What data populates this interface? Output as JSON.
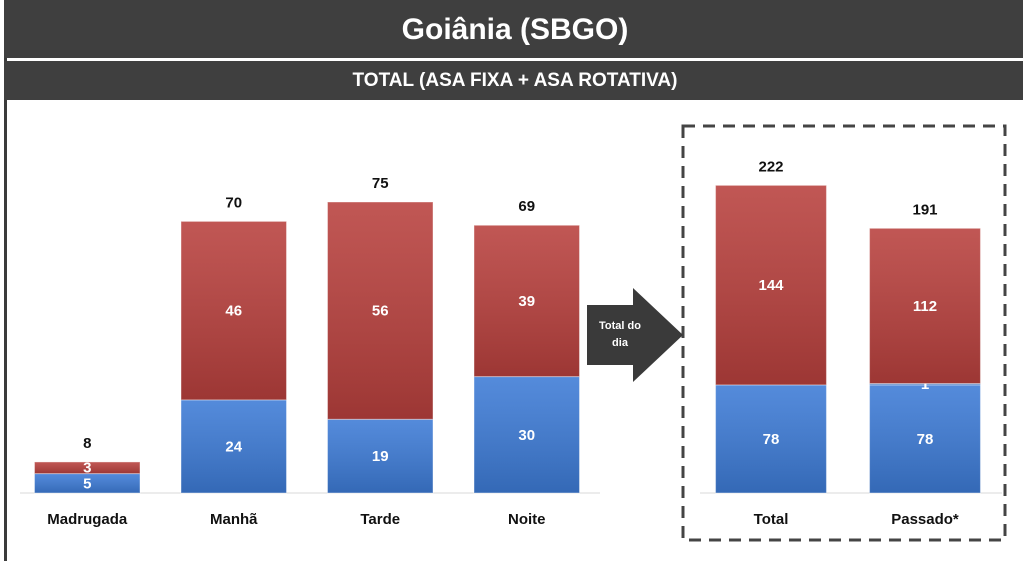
{
  "header": {
    "title": "Goiânia (SBGO)",
    "subtitle": "TOTAL (ASA FIXA + ASA ROTATIVA)",
    "annotation": "Total do dia"
  },
  "chart_data": [
    {
      "type": "bar",
      "stacked": true,
      "categories": [
        "Madrugada",
        "Manhã",
        "Tarde",
        "Noite"
      ],
      "series": [
        {
          "color": "#3d7bd6",
          "values": [
            5,
            24,
            19,
            30
          ]
        },
        {
          "color": "#b8403d",
          "values": [
            3,
            46,
            56,
            39
          ]
        }
      ],
      "totals": [
        8,
        70,
        75,
        69
      ],
      "ylim": [
        0,
        100
      ]
    },
    {
      "type": "bar",
      "stacked": true,
      "categories": [
        "Total",
        "Passado*"
      ],
      "series": [
        {
          "color": "#3d7bd6",
          "values": [
            78,
            78
          ]
        },
        {
          "color": "#4a86d8",
          "values": [
            null,
            1
          ]
        },
        {
          "color": "#b8403d",
          "values": [
            144,
            112
          ]
        }
      ],
      "totals": [
        222,
        191
      ],
      "ylim": [
        0,
        280
      ]
    }
  ]
}
